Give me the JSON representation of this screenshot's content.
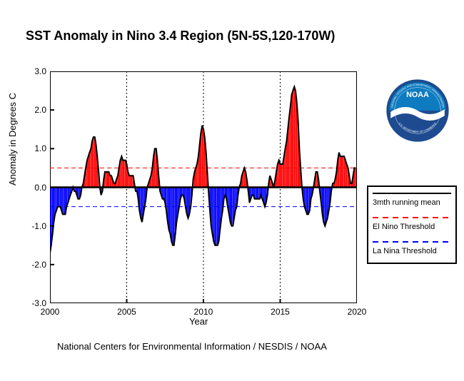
{
  "title": "SST Anomaly in Nino 3.4 Region (5N-5S,120-170W)",
  "chart": {
    "type": "area-bar",
    "xlabel": "Year",
    "ylabel": "Anomaly in Degrees C",
    "xlim": [
      2000,
      2020
    ],
    "ylim": [
      -3.0,
      3.0
    ],
    "xticks": [
      2000,
      2005,
      2010,
      2015,
      2020
    ],
    "yticks": [
      -3.0,
      -2.0,
      -1.0,
      0.0,
      1.0,
      2.0,
      3.0
    ],
    "ytick_labels": [
      "-3.0",
      "-2.0",
      "-1.0",
      "0.0",
      "1.0",
      "2.0",
      "3.0"
    ],
    "el_nino_threshold": 0.5,
    "la_nina_threshold": -0.5,
    "threshold_colors": {
      "el_nino": "#ff0000",
      "la_nina": "#0000ff"
    },
    "positive_fill": "#ff0000",
    "negative_fill": "#0000ff",
    "mean_line_color": "#000000",
    "mean_line_width": 2,
    "grid_color": "#000000",
    "grid_dash": "2,3",
    "axis_color": "#000000",
    "background_color": "#ffffff",
    "logo_colors": {
      "outer_ring": "#1e4b8f",
      "top_half": "#0e7bc0",
      "bottom_half": "#1e4b8f",
      "swoosh": "#ffffff",
      "text": "#ffffff"
    },
    "data": [
      {
        "x": 2000.0,
        "y": -1.7
      },
      {
        "x": 2000.08,
        "y": -1.5
      },
      {
        "x": 2000.17,
        "y": -1.2
      },
      {
        "x": 2000.25,
        "y": -0.9
      },
      {
        "x": 2000.33,
        "y": -0.7
      },
      {
        "x": 2000.42,
        "y": -0.6
      },
      {
        "x": 2000.5,
        "y": -0.5
      },
      {
        "x": 2000.58,
        "y": -0.5
      },
      {
        "x": 2000.67,
        "y": -0.5
      },
      {
        "x": 2000.75,
        "y": -0.6
      },
      {
        "x": 2000.83,
        "y": -0.7
      },
      {
        "x": 2000.92,
        "y": -0.7
      },
      {
        "x": 2001.0,
        "y": -0.7
      },
      {
        "x": 2001.08,
        "y": -0.5
      },
      {
        "x": 2001.17,
        "y": -0.4
      },
      {
        "x": 2001.25,
        "y": -0.3
      },
      {
        "x": 2001.33,
        "y": -0.2
      },
      {
        "x": 2001.42,
        "y": -0.1
      },
      {
        "x": 2001.5,
        "y": 0.0
      },
      {
        "x": 2001.58,
        "y": -0.1
      },
      {
        "x": 2001.67,
        "y": -0.1
      },
      {
        "x": 2001.75,
        "y": -0.2
      },
      {
        "x": 2001.83,
        "y": -0.3
      },
      {
        "x": 2001.92,
        "y": -0.3
      },
      {
        "x": 2002.0,
        "y": -0.2
      },
      {
        "x": 2002.08,
        "y": 0.0
      },
      {
        "x": 2002.17,
        "y": 0.1
      },
      {
        "x": 2002.25,
        "y": 0.3
      },
      {
        "x": 2002.33,
        "y": 0.5
      },
      {
        "x": 2002.42,
        "y": 0.7
      },
      {
        "x": 2002.5,
        "y": 0.8
      },
      {
        "x": 2002.58,
        "y": 0.9
      },
      {
        "x": 2002.67,
        "y": 1.0
      },
      {
        "x": 2002.75,
        "y": 1.2
      },
      {
        "x": 2002.83,
        "y": 1.3
      },
      {
        "x": 2002.92,
        "y": 1.3
      },
      {
        "x": 2003.0,
        "y": 1.1
      },
      {
        "x": 2003.08,
        "y": 0.8
      },
      {
        "x": 2003.17,
        "y": 0.4
      },
      {
        "x": 2003.25,
        "y": 0.0
      },
      {
        "x": 2003.33,
        "y": -0.2
      },
      {
        "x": 2003.42,
        "y": -0.1
      },
      {
        "x": 2003.5,
        "y": 0.2
      },
      {
        "x": 2003.58,
        "y": 0.4
      },
      {
        "x": 2003.67,
        "y": 0.4
      },
      {
        "x": 2003.75,
        "y": 0.4
      },
      {
        "x": 2003.83,
        "y": 0.4
      },
      {
        "x": 2003.92,
        "y": 0.3
      },
      {
        "x": 2004.0,
        "y": 0.3
      },
      {
        "x": 2004.08,
        "y": 0.2
      },
      {
        "x": 2004.17,
        "y": 0.1
      },
      {
        "x": 2004.25,
        "y": 0.1
      },
      {
        "x": 2004.33,
        "y": 0.2
      },
      {
        "x": 2004.42,
        "y": 0.3
      },
      {
        "x": 2004.5,
        "y": 0.5
      },
      {
        "x": 2004.58,
        "y": 0.7
      },
      {
        "x": 2004.67,
        "y": 0.8
      },
      {
        "x": 2004.75,
        "y": 0.7
      },
      {
        "x": 2004.83,
        "y": 0.7
      },
      {
        "x": 2004.92,
        "y": 0.7
      },
      {
        "x": 2005.0,
        "y": 0.6
      },
      {
        "x": 2005.08,
        "y": 0.4
      },
      {
        "x": 2005.17,
        "y": 0.3
      },
      {
        "x": 2005.25,
        "y": 0.3
      },
      {
        "x": 2005.33,
        "y": 0.3
      },
      {
        "x": 2005.42,
        "y": 0.3
      },
      {
        "x": 2005.5,
        "y": 0.1
      },
      {
        "x": 2005.58,
        "y": -0.1
      },
      {
        "x": 2005.67,
        "y": -0.1
      },
      {
        "x": 2005.75,
        "y": -0.3
      },
      {
        "x": 2005.83,
        "y": -0.6
      },
      {
        "x": 2005.92,
        "y": -0.8
      },
      {
        "x": 2006.0,
        "y": -0.9
      },
      {
        "x": 2006.08,
        "y": -0.7
      },
      {
        "x": 2006.17,
        "y": -0.5
      },
      {
        "x": 2006.25,
        "y": -0.3
      },
      {
        "x": 2006.33,
        "y": 0.0
      },
      {
        "x": 2006.42,
        "y": 0.1
      },
      {
        "x": 2006.5,
        "y": 0.2
      },
      {
        "x": 2006.58,
        "y": 0.3
      },
      {
        "x": 2006.67,
        "y": 0.5
      },
      {
        "x": 2006.75,
        "y": 0.8
      },
      {
        "x": 2006.83,
        "y": 1.0
      },
      {
        "x": 2006.92,
        "y": 1.0
      },
      {
        "x": 2007.0,
        "y": 0.7
      },
      {
        "x": 2007.08,
        "y": 0.3
      },
      {
        "x": 2007.17,
        "y": -0.1
      },
      {
        "x": 2007.25,
        "y": -0.2
      },
      {
        "x": 2007.33,
        "y": -0.3
      },
      {
        "x": 2007.42,
        "y": -0.3
      },
      {
        "x": 2007.5,
        "y": -0.4
      },
      {
        "x": 2007.58,
        "y": -0.6
      },
      {
        "x": 2007.67,
        "y": -0.9
      },
      {
        "x": 2007.75,
        "y": -1.1
      },
      {
        "x": 2007.83,
        "y": -1.2
      },
      {
        "x": 2007.92,
        "y": -1.4
      },
      {
        "x": 2008.0,
        "y": -1.5
      },
      {
        "x": 2008.08,
        "y": -1.5
      },
      {
        "x": 2008.17,
        "y": -1.2
      },
      {
        "x": 2008.25,
        "y": -0.9
      },
      {
        "x": 2008.33,
        "y": -0.7
      },
      {
        "x": 2008.42,
        "y": -0.5
      },
      {
        "x": 2008.5,
        "y": -0.3
      },
      {
        "x": 2008.58,
        "y": -0.2
      },
      {
        "x": 2008.67,
        "y": -0.2
      },
      {
        "x": 2008.75,
        "y": -0.3
      },
      {
        "x": 2008.83,
        "y": -0.5
      },
      {
        "x": 2008.92,
        "y": -0.7
      },
      {
        "x": 2009.0,
        "y": -0.8
      },
      {
        "x": 2009.08,
        "y": -0.7
      },
      {
        "x": 2009.17,
        "y": -0.5
      },
      {
        "x": 2009.25,
        "y": -0.2
      },
      {
        "x": 2009.33,
        "y": 0.2
      },
      {
        "x": 2009.42,
        "y": 0.4
      },
      {
        "x": 2009.5,
        "y": 0.5
      },
      {
        "x": 2009.58,
        "y": 0.6
      },
      {
        "x": 2009.67,
        "y": 0.8
      },
      {
        "x": 2009.75,
        "y": 1.1
      },
      {
        "x": 2009.83,
        "y": 1.4
      },
      {
        "x": 2009.92,
        "y": 1.6
      },
      {
        "x": 2010.0,
        "y": 1.5
      },
      {
        "x": 2010.08,
        "y": 1.3
      },
      {
        "x": 2010.17,
        "y": 0.9
      },
      {
        "x": 2010.25,
        "y": 0.4
      },
      {
        "x": 2010.33,
        "y": -0.1
      },
      {
        "x": 2010.42,
        "y": -0.6
      },
      {
        "x": 2010.5,
        "y": -1.0
      },
      {
        "x": 2010.58,
        "y": -1.2
      },
      {
        "x": 2010.67,
        "y": -1.4
      },
      {
        "x": 2010.75,
        "y": -1.5
      },
      {
        "x": 2010.83,
        "y": -1.5
      },
      {
        "x": 2010.92,
        "y": -1.5
      },
      {
        "x": 2011.0,
        "y": -1.4
      },
      {
        "x": 2011.08,
        "y": -1.1
      },
      {
        "x": 2011.17,
        "y": -0.8
      },
      {
        "x": 2011.25,
        "y": -0.6
      },
      {
        "x": 2011.33,
        "y": -0.3
      },
      {
        "x": 2011.42,
        "y": -0.2
      },
      {
        "x": 2011.5,
        "y": -0.3
      },
      {
        "x": 2011.58,
        "y": -0.5
      },
      {
        "x": 2011.67,
        "y": -0.7
      },
      {
        "x": 2011.75,
        "y": -0.9
      },
      {
        "x": 2011.83,
        "y": -1.0
      },
      {
        "x": 2011.92,
        "y": -1.0
      },
      {
        "x": 2012.0,
        "y": -0.8
      },
      {
        "x": 2012.08,
        "y": -0.6
      },
      {
        "x": 2012.17,
        "y": -0.5
      },
      {
        "x": 2012.25,
        "y": -0.2
      },
      {
        "x": 2012.33,
        "y": 0.0
      },
      {
        "x": 2012.42,
        "y": 0.1
      },
      {
        "x": 2012.5,
        "y": 0.3
      },
      {
        "x": 2012.58,
        "y": 0.4
      },
      {
        "x": 2012.67,
        "y": 0.5
      },
      {
        "x": 2012.75,
        "y": 0.4
      },
      {
        "x": 2012.83,
        "y": 0.2
      },
      {
        "x": 2012.92,
        "y": -0.1
      },
      {
        "x": 2013.0,
        "y": -0.4
      },
      {
        "x": 2013.08,
        "y": -0.3
      },
      {
        "x": 2013.17,
        "y": -0.2
      },
      {
        "x": 2013.25,
        "y": -0.2
      },
      {
        "x": 2013.33,
        "y": -0.3
      },
      {
        "x": 2013.42,
        "y": -0.3
      },
      {
        "x": 2013.5,
        "y": -0.3
      },
      {
        "x": 2013.58,
        "y": -0.3
      },
      {
        "x": 2013.67,
        "y": -0.3
      },
      {
        "x": 2013.75,
        "y": -0.2
      },
      {
        "x": 2013.83,
        "y": -0.3
      },
      {
        "x": 2013.92,
        "y": -0.4
      },
      {
        "x": 2014.0,
        "y": -0.5
      },
      {
        "x": 2014.08,
        "y": -0.4
      },
      {
        "x": 2014.17,
        "y": -0.2
      },
      {
        "x": 2014.25,
        "y": 0.1
      },
      {
        "x": 2014.33,
        "y": 0.3
      },
      {
        "x": 2014.42,
        "y": 0.2
      },
      {
        "x": 2014.5,
        "y": 0.1
      },
      {
        "x": 2014.58,
        "y": 0.0
      },
      {
        "x": 2014.67,
        "y": 0.2
      },
      {
        "x": 2014.75,
        "y": 0.4
      },
      {
        "x": 2014.83,
        "y": 0.6
      },
      {
        "x": 2014.92,
        "y": 0.7
      },
      {
        "x": 2015.0,
        "y": 0.6
      },
      {
        "x": 2015.08,
        "y": 0.6
      },
      {
        "x": 2015.17,
        "y": 0.6
      },
      {
        "x": 2015.25,
        "y": 0.8
      },
      {
        "x": 2015.33,
        "y": 1.0
      },
      {
        "x": 2015.42,
        "y": 1.2
      },
      {
        "x": 2015.5,
        "y": 1.5
      },
      {
        "x": 2015.58,
        "y": 1.8
      },
      {
        "x": 2015.67,
        "y": 2.1
      },
      {
        "x": 2015.75,
        "y": 2.4
      },
      {
        "x": 2015.83,
        "y": 2.5
      },
      {
        "x": 2015.92,
        "y": 2.6
      },
      {
        "x": 2016.0,
        "y": 2.5
      },
      {
        "x": 2016.08,
        "y": 2.2
      },
      {
        "x": 2016.17,
        "y": 1.7
      },
      {
        "x": 2016.25,
        "y": 1.0
      },
      {
        "x": 2016.33,
        "y": 0.5
      },
      {
        "x": 2016.42,
        "y": 0.0
      },
      {
        "x": 2016.5,
        "y": -0.3
      },
      {
        "x": 2016.58,
        "y": -0.5
      },
      {
        "x": 2016.67,
        "y": -0.6
      },
      {
        "x": 2016.75,
        "y": -0.7
      },
      {
        "x": 2016.83,
        "y": -0.7
      },
      {
        "x": 2016.92,
        "y": -0.6
      },
      {
        "x": 2017.0,
        "y": -0.3
      },
      {
        "x": 2017.08,
        "y": -0.2
      },
      {
        "x": 2017.17,
        "y": 0.0
      },
      {
        "x": 2017.25,
        "y": 0.2
      },
      {
        "x": 2017.33,
        "y": 0.4
      },
      {
        "x": 2017.42,
        "y": 0.4
      },
      {
        "x": 2017.5,
        "y": 0.2
      },
      {
        "x": 2017.58,
        "y": -0.1
      },
      {
        "x": 2017.67,
        "y": -0.4
      },
      {
        "x": 2017.75,
        "y": -0.7
      },
      {
        "x": 2017.83,
        "y": -0.9
      },
      {
        "x": 2017.92,
        "y": -1.0
      },
      {
        "x": 2018.0,
        "y": -0.9
      },
      {
        "x": 2018.08,
        "y": -0.8
      },
      {
        "x": 2018.17,
        "y": -0.6
      },
      {
        "x": 2018.25,
        "y": -0.4
      },
      {
        "x": 2018.33,
        "y": -0.1
      },
      {
        "x": 2018.42,
        "y": 0.1
      },
      {
        "x": 2018.5,
        "y": 0.1
      },
      {
        "x": 2018.58,
        "y": 0.2
      },
      {
        "x": 2018.67,
        "y": 0.4
      },
      {
        "x": 2018.75,
        "y": 0.7
      },
      {
        "x": 2018.83,
        "y": 0.9
      },
      {
        "x": 2018.92,
        "y": 0.8
      },
      {
        "x": 2019.0,
        "y": 0.8
      },
      {
        "x": 2019.08,
        "y": 0.8
      },
      {
        "x": 2019.17,
        "y": 0.8
      },
      {
        "x": 2019.25,
        "y": 0.7
      },
      {
        "x": 2019.33,
        "y": 0.6
      },
      {
        "x": 2019.42,
        "y": 0.5
      },
      {
        "x": 2019.5,
        "y": 0.3
      },
      {
        "x": 2019.58,
        "y": 0.1
      },
      {
        "x": 2019.67,
        "y": 0.1
      },
      {
        "x": 2019.75,
        "y": 0.3
      },
      {
        "x": 2019.83,
        "y": 0.5
      },
      {
        "x": 2019.92,
        "y": 0.5
      }
    ]
  },
  "legend": {
    "items": [
      {
        "label": "3mth running mean",
        "style": "solid",
        "color": "#000000"
      },
      {
        "label": "El Nino Threshold",
        "style": "dashed",
        "color": "#ff0000"
      },
      {
        "label": "La Nina Threshold",
        "style": "dashed",
        "color": "#0000ff"
      }
    ]
  },
  "credit": "National Centers for Environmental Information / NESDIS / NOAA",
  "logo": {
    "name": "noaa-logo",
    "outer_text": "NATIONAL OCEANIC AND ATMOSPHERIC ADMINISTRATION  U.S. DEPARTMENT OF COMMERCE",
    "center_text": "NOAA"
  }
}
